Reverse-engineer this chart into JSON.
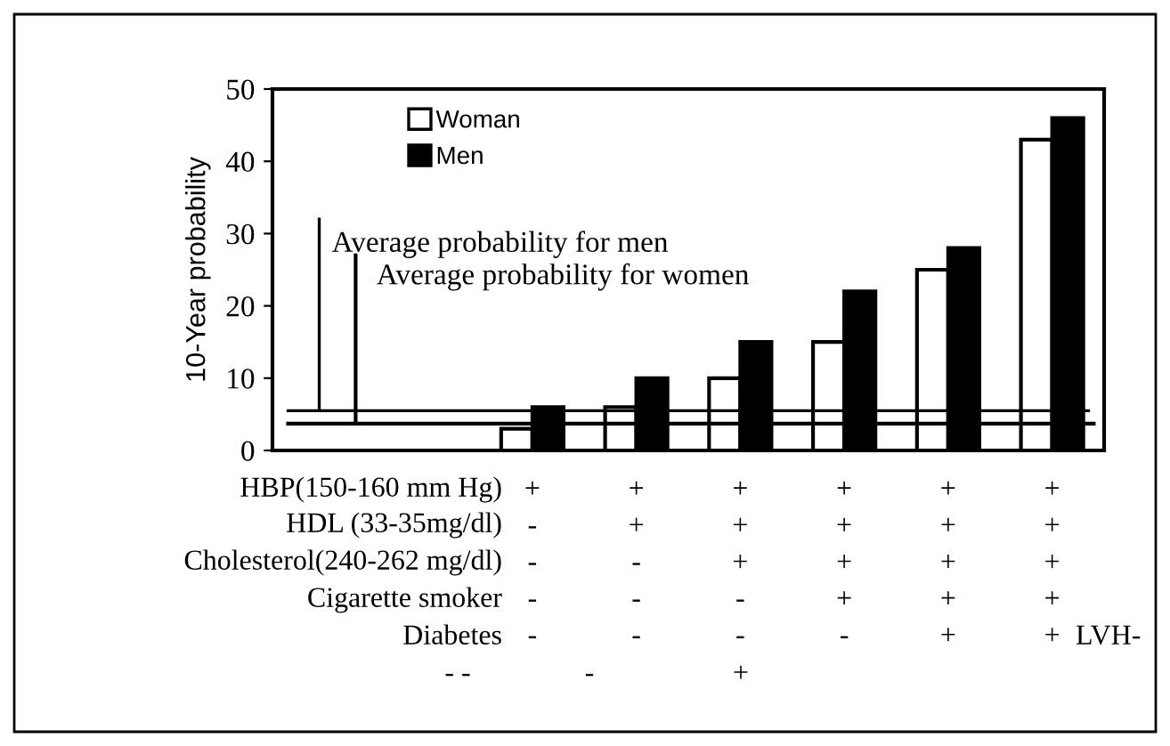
{
  "chart_data": {
    "type": "bar",
    "ylabel": "10-Year probability",
    "categories": [
      null,
      null,
      "+\n-\n-\n-\n-",
      "+\n+\n-\n-\n-",
      "+\n+\n+\n-\n-",
      "+\n+\n+\n+\n-",
      "+\n+\n+\n+\n+",
      "+\n+\n+\n+\n+"
    ],
    "series": [
      {
        "name": "Woman",
        "color": "#ffffff",
        "values": [
          null,
          null,
          3,
          6,
          10,
          15,
          25,
          43
        ]
      },
      {
        "name": "Men",
        "color": "#000000",
        "values": [
          null,
          null,
          6,
          10,
          15,
          22,
          28,
          46
        ]
      }
    ],
    "ylim": [
      0,
      50
    ],
    "yticks": [
      0,
      10,
      20,
      30,
      40,
      50
    ],
    "grid": false,
    "legend": "top left",
    "ref_lines": [
      {
        "axis": "y",
        "value": 5.5,
        "label": "Average probability for men",
        "color": "#000000"
      },
      {
        "axis": "y",
        "value": 3.7,
        "label": "Average probability for women",
        "color": "#000000"
      }
    ],
    "annotations": [
      "HBP(150-160 mm Hg)",
      "HDL (33-35mg/dl)",
      "Cholesterol(240-262 mg/dl)",
      "Cigarette smoker",
      "Diabetes",
      "LVH-",
      "- -",
      "-",
      "+"
    ]
  }
}
